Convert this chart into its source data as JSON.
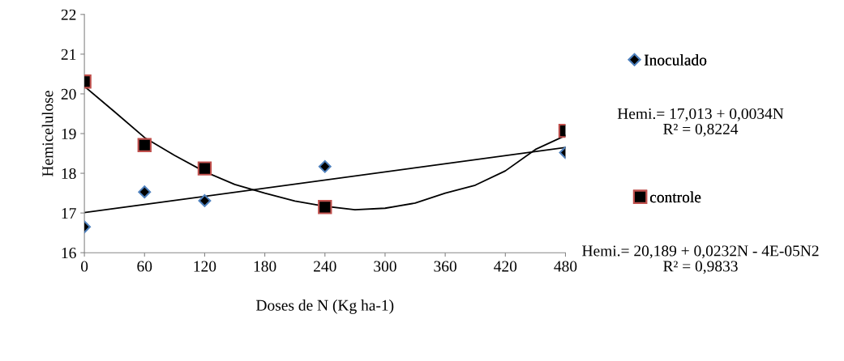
{
  "chart_data": {
    "type": "scatter",
    "xlabel": "Doses de N (Kg ha-1)",
    "ylabel": "Hemicelulose",
    "xlim": [
      0,
      480
    ],
    "xticks": [
      0,
      60,
      120,
      180,
      240,
      300,
      360,
      420,
      480
    ],
    "ylim": [
      16,
      22
    ],
    "yticks": [
      16,
      17,
      18,
      19,
      20,
      21,
      22
    ],
    "grid": false,
    "legend": "right",
    "series": [
      {
        "name": "Inoculado",
        "marker": "diamond",
        "color": "#4f81bd",
        "x": [
          0,
          60,
          120,
          240,
          480
        ],
        "values": [
          16.65,
          17.53,
          17.31,
          18.17,
          18.52
        ]
      },
      {
        "name": "controle",
        "marker": "square",
        "color": "#c0504d",
        "x": [
          0,
          60,
          120,
          240,
          480
        ],
        "values": [
          20.31,
          18.71,
          18.12,
          17.15,
          19.07
        ]
      },
      {
        "type": "line",
        "marker": "none",
        "color": "#000000",
        "x": [
          0,
          480
        ],
        "values": [
          17.01,
          18.65
        ]
      },
      {
        "type": "line",
        "marker": "none",
        "color": "#000000",
        "x": [
          0,
          30,
          60,
          90,
          120,
          150,
          180,
          210,
          240,
          270,
          300,
          330,
          360,
          390,
          420,
          450,
          480
        ],
        "values": [
          20.19,
          19.55,
          18.9,
          18.45,
          18.04,
          17.72,
          17.5,
          17.3,
          17.17,
          17.08,
          17.12,
          17.25,
          17.5,
          17.7,
          18.06,
          18.6,
          18.95
        ]
      }
    ],
    "annotations": [
      "Hemi.= 17,013 + 0,0034N\nR² = 0,8224",
      "Hemi.= 20,189 + 0,0232N - 4E-05N2\nR² = 0,9833"
    ]
  }
}
